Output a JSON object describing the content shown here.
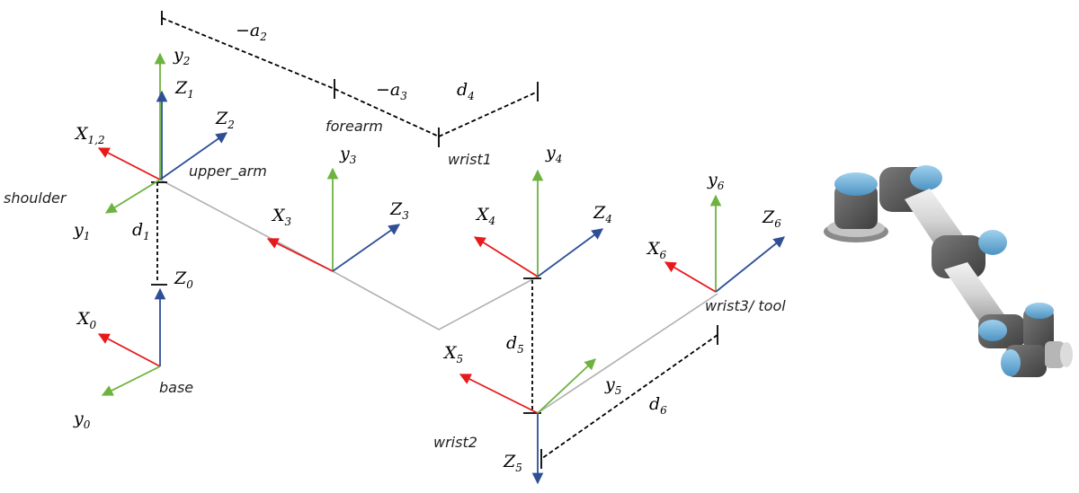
{
  "colors": {
    "x_axis": "#e8191a",
    "y_axis": "#6db33f",
    "z_axis": "#2e4f96",
    "link": "#b0b0b0",
    "dim": "#000000"
  },
  "frames": [
    {
      "id": "base",
      "name": "base",
      "x_label": {
        "main": "X",
        "sub": "0"
      },
      "y_label": {
        "main": "y",
        "sub": "0"
      },
      "z_label": {
        "main": "Z",
        "sub": "0"
      }
    },
    {
      "id": "shoulder",
      "name": "shoulder",
      "x_label": {
        "main": "X",
        "sub": "1,2"
      },
      "y_label": {
        "main": "y",
        "sub": "1"
      },
      "z_label": {
        "main": "Z",
        "sub": "1"
      }
    },
    {
      "id": "upper_arm",
      "name": "upper_arm",
      "y_label": {
        "main": "y",
        "sub": "2"
      },
      "z_label": {
        "main": "Z",
        "sub": "2"
      }
    },
    {
      "id": "forearm",
      "name": "forearm",
      "x_label": {
        "main": "X",
        "sub": "3"
      },
      "y_label": {
        "main": "y",
        "sub": "3"
      },
      "z_label": {
        "main": "Z",
        "sub": "3"
      }
    },
    {
      "id": "wrist1",
      "name": "wrist1",
      "x_label": {
        "main": "X",
        "sub": "4"
      },
      "y_label": {
        "main": "y",
        "sub": "4"
      },
      "z_label": {
        "main": "Z",
        "sub": "4"
      }
    },
    {
      "id": "wrist2",
      "name": "wrist2",
      "x_label": {
        "main": "X",
        "sub": "5"
      },
      "y_label": {
        "main": "y",
        "sub": "5"
      },
      "z_label": {
        "main": "Z",
        "sub": "5"
      }
    },
    {
      "id": "wrist3",
      "name": "wrist3/ tool",
      "x_label": {
        "main": "X",
        "sub": "6"
      },
      "y_label": {
        "main": "y",
        "sub": "6"
      },
      "z_label": {
        "main": "Z",
        "sub": "6"
      }
    }
  ],
  "dimensions": [
    {
      "id": "a2",
      "main": "−a",
      "sub": "2"
    },
    {
      "id": "a3",
      "main": "−a",
      "sub": "3"
    },
    {
      "id": "d1",
      "main": "d",
      "sub": "1"
    },
    {
      "id": "d4",
      "main": "d",
      "sub": "4"
    },
    {
      "id": "d5",
      "main": "d",
      "sub": "5"
    },
    {
      "id": "d6",
      "main": "d",
      "sub": "6"
    }
  ]
}
